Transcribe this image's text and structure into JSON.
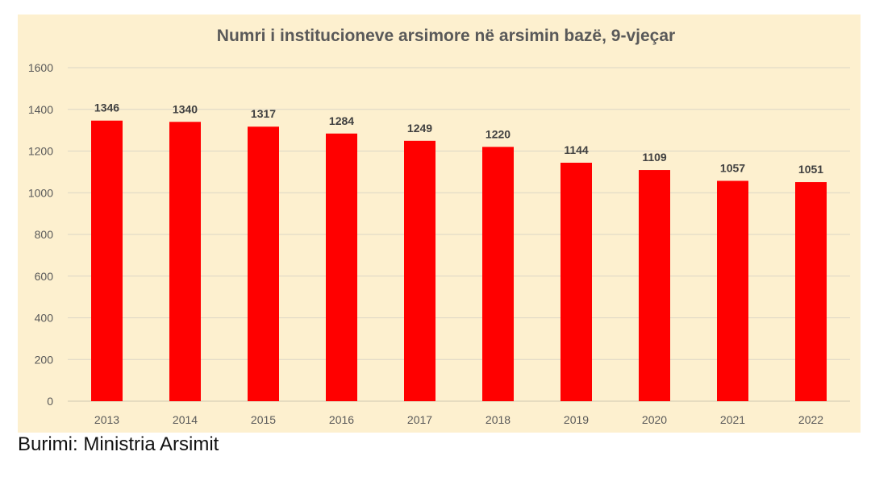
{
  "chart_data": {
    "type": "bar",
    "title": "Numri i institucioneve arsimore në arsimin bazë, 9-vjeçar",
    "categories": [
      "2013",
      "2014",
      "2015",
      "2016",
      "2017",
      "2018",
      "2019",
      "2020",
      "2021",
      "2022"
    ],
    "values": [
      1346,
      1340,
      1317,
      1284,
      1249,
      1220,
      1144,
      1109,
      1057,
      1051
    ],
    "ylim": [
      0,
      1600
    ],
    "yticks": [
      0,
      200,
      400,
      600,
      800,
      1000,
      1200,
      1400,
      1600
    ],
    "grid": true,
    "bar_color": "#ff0000",
    "background_color": "#fdf0cf",
    "data_labels": true
  },
  "source": "Burimi: Ministria Arsimit"
}
